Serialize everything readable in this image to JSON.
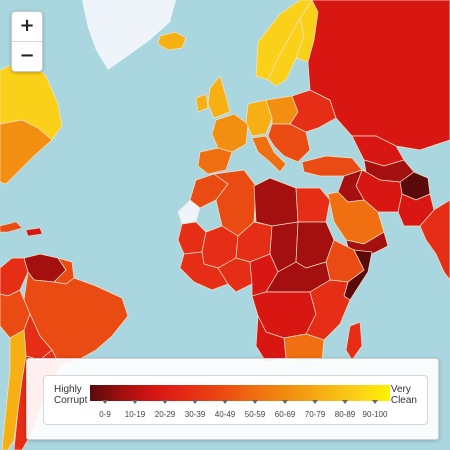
{
  "map": {
    "colors": {
      "ocean": "#a9d6df",
      "border": "#f3e2cc",
      "ice": "#eef4f9",
      "scale": [
        "#5a0a0b",
        "#a40f0f",
        "#d81713",
        "#e52e15",
        "#ea4b13",
        "#f07011",
        "#f28f10",
        "#f7b013",
        "#fbd018",
        "#fff200"
      ]
    },
    "zoom": {
      "in_label": "+",
      "out_label": "−"
    }
  },
  "legend": {
    "left_label_line1": "Highly",
    "left_label_line2": "Corrupt",
    "right_label_line1": "Very",
    "right_label_line2": "Clean",
    "ranges": [
      "0-9",
      "10-19",
      "20-29",
      "30-39",
      "40-49",
      "50-59",
      "60-69",
      "70-79",
      "80-89",
      "90-100"
    ]
  }
}
